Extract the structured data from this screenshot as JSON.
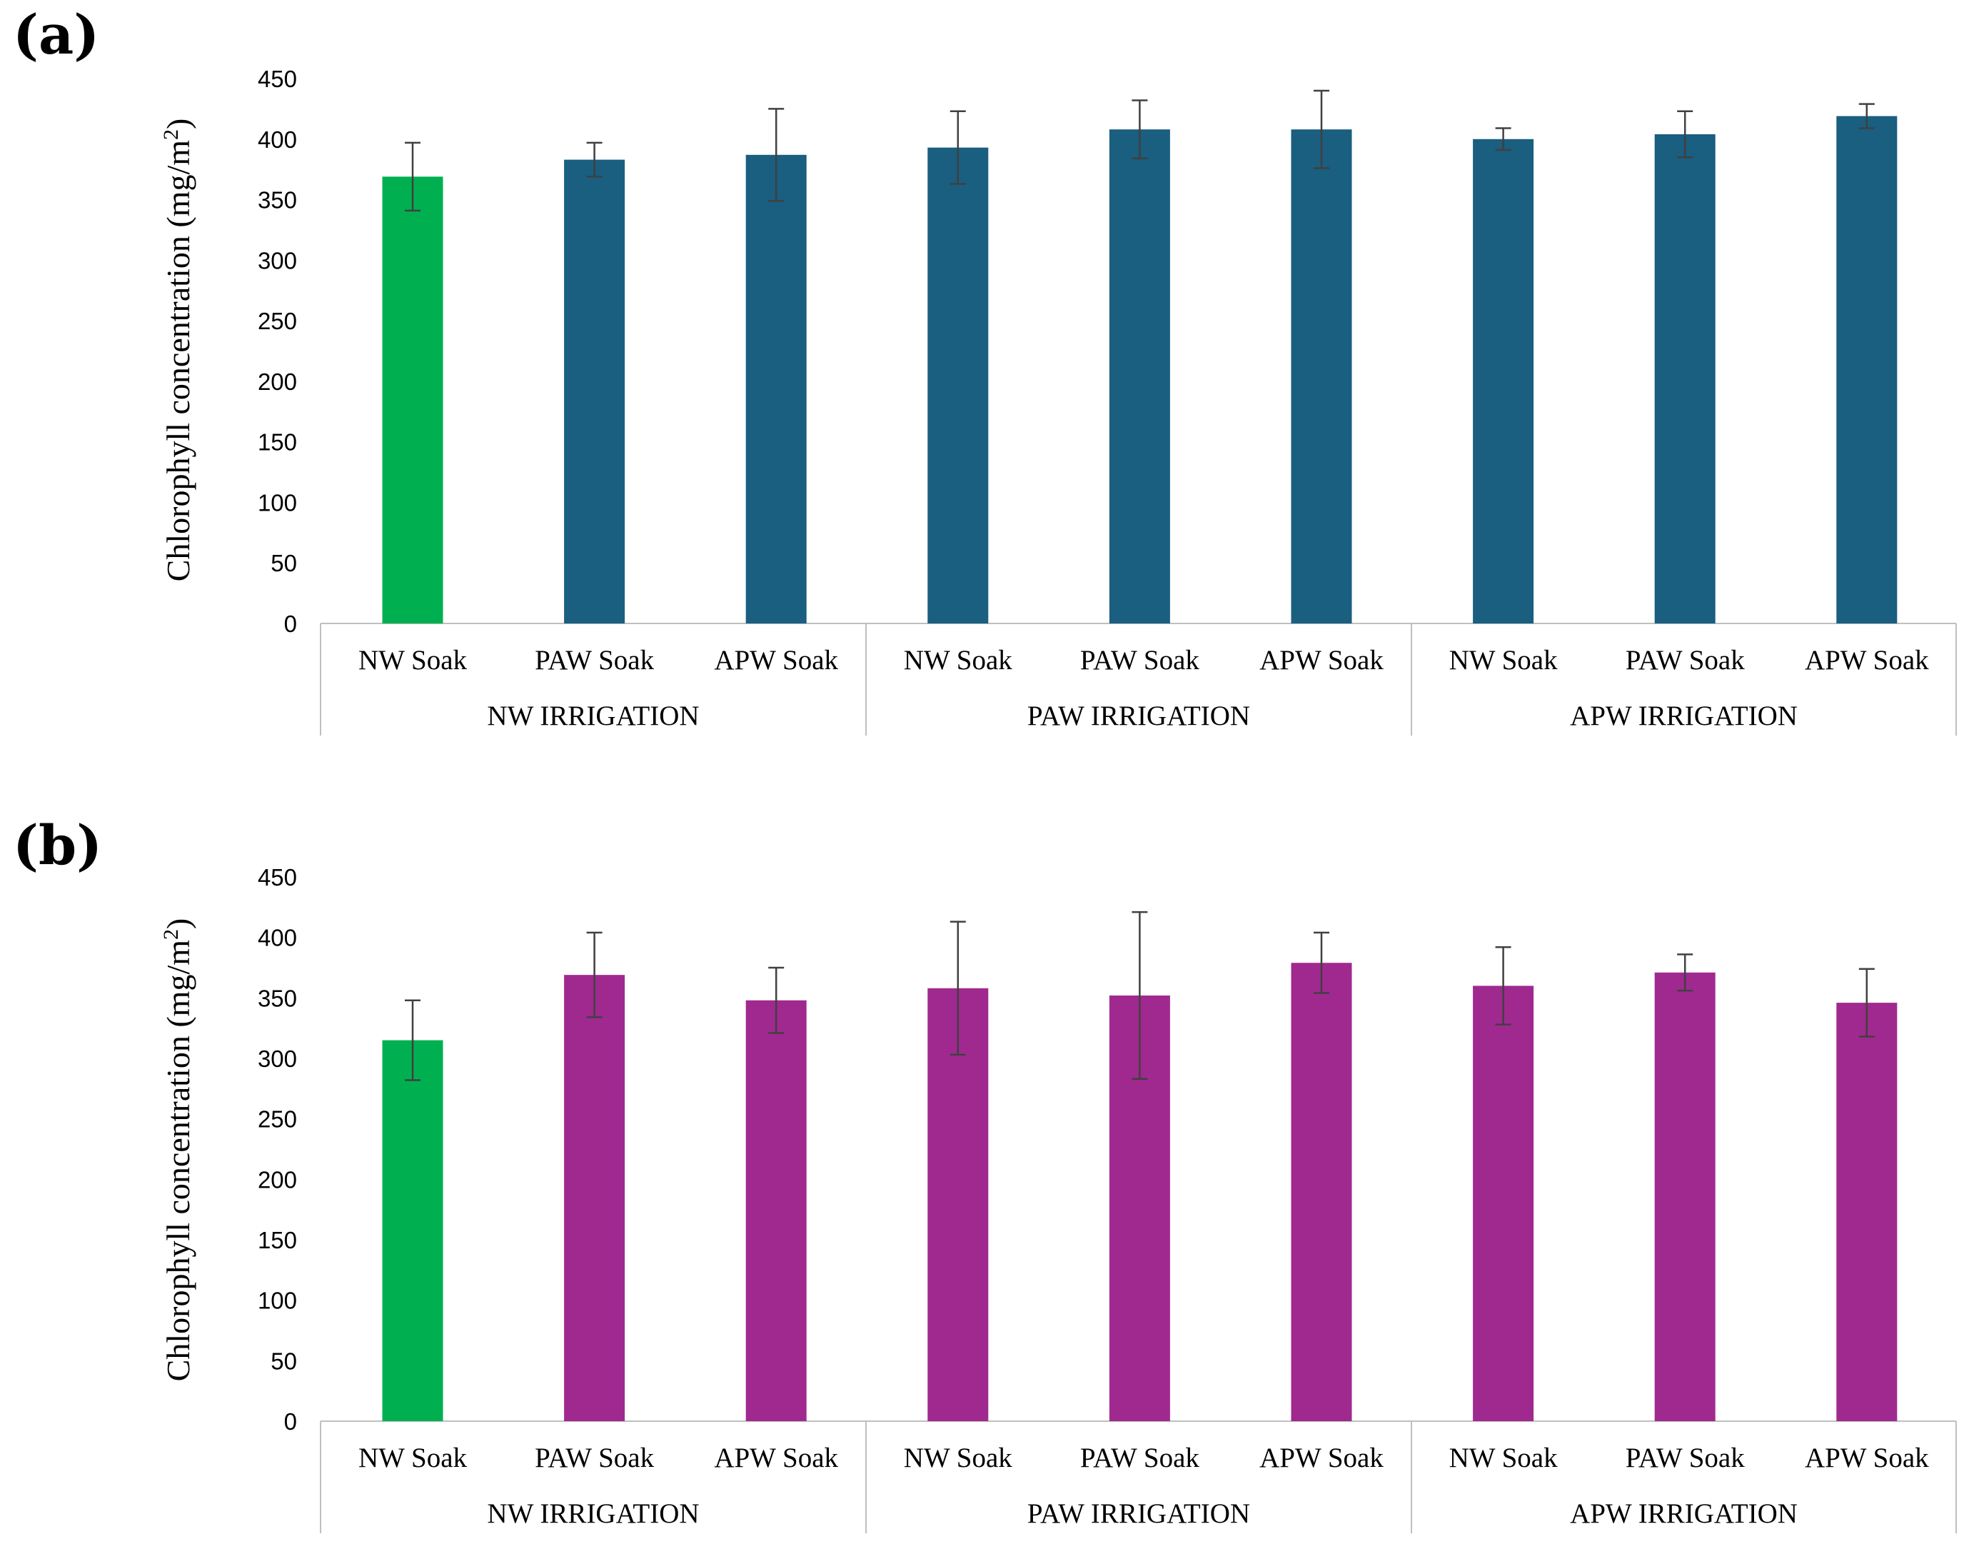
{
  "chart_data": [
    {
      "panel_label": "(a)",
      "type": "bar",
      "ylabel": {
        "main": "Chlorophyll  concentration  (mg/m",
        "sup": "2",
        "end": ")"
      },
      "ylim": [
        0,
        450
      ],
      "yticks": [
        0,
        50,
        100,
        150,
        200,
        250,
        300,
        350,
        400,
        450
      ],
      "grid": false,
      "categories": [
        "NW Soak",
        "PAW Soak",
        "APW Soak",
        "NW Soak",
        "PAW Soak",
        "APW Soak",
        "NW Soak",
        "PAW Soak",
        "APW Soak"
      ],
      "groups": [
        "NW IRRIGATION",
        "PAW IRRIGATION",
        "APW IRRIGATION"
      ],
      "values": [
        369,
        383,
        387,
        393,
        408,
        408,
        400,
        404,
        419
      ],
      "errors": [
        28,
        14,
        38,
        30,
        24,
        32,
        9,
        19,
        10
      ],
      "colors": [
        "#00b050",
        "#1a5e80",
        "#1a5e80",
        "#1a5e80",
        "#1a5e80",
        "#1a5e80",
        "#1a5e80",
        "#1a5e80",
        "#1a5e80"
      ]
    },
    {
      "panel_label": "(b)",
      "type": "bar",
      "ylabel": {
        "main": "Chlorophyll  concentration  (mg/m",
        "sup": "2",
        "end": ")"
      },
      "ylim": [
        0,
        450
      ],
      "yticks": [
        0,
        50,
        100,
        150,
        200,
        250,
        300,
        350,
        400,
        450
      ],
      "grid": false,
      "categories": [
        "NW Soak",
        "PAW Soak",
        "APW Soak",
        "NW Soak",
        "PAW Soak",
        "APW Soak",
        "NW Soak",
        "PAW Soak",
        "APW Soak"
      ],
      "groups": [
        "NW IRRIGATION",
        "PAW IRRIGATION",
        "APW IRRIGATION"
      ],
      "values": [
        315,
        369,
        348,
        358,
        352,
        379,
        360,
        371,
        346
      ],
      "errors": [
        33,
        35,
        27,
        55,
        69,
        25,
        32,
        15,
        28
      ],
      "colors": [
        "#00b050",
        "#a0298f",
        "#a0298f",
        "#a0298f",
        "#a0298f",
        "#a0298f",
        "#a0298f",
        "#a0298f",
        "#a0298f"
      ]
    }
  ]
}
